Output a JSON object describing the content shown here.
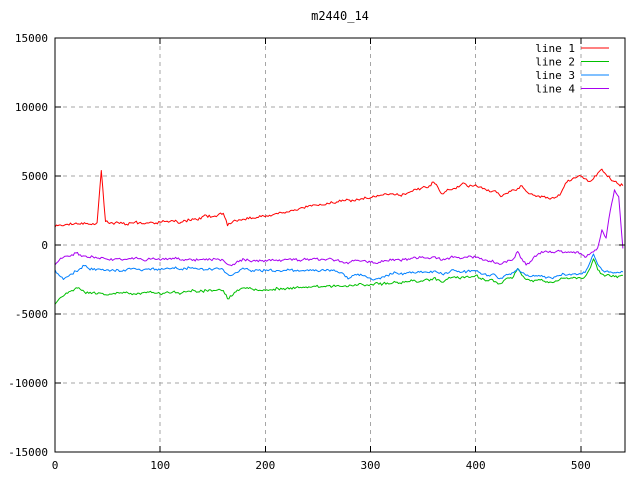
{
  "window": {
    "background": "#ffffff"
  },
  "chart_data": {
    "type": "line",
    "title": "m2440_14",
    "xlabel": "",
    "ylabel": "",
    "xlim": [
      0,
      542
    ],
    "ylim": [
      -15000,
      15000
    ],
    "xticks": [
      0,
      100,
      200,
      300,
      400,
      500
    ],
    "yticks": [
      -15000,
      -10000,
      -5000,
      0,
      5000,
      10000,
      15000
    ],
    "xtick_labels": [
      "0",
      "100",
      "200",
      "300",
      "400",
      "500"
    ],
    "ytick_labels": [
      "-15000",
      "-10000",
      "-5000",
      "0",
      "5000",
      "10000",
      "15000"
    ],
    "grid": "dashed",
    "legend_position": "top-right-inside",
    "colors": {
      "border": "#000000",
      "grid": "#a6a6a6",
      "text": "#000000",
      "background": "#ffffff"
    },
    "x_start": 0,
    "x_step": 4,
    "series": [
      {
        "name": "line 1",
        "color": "#ff0000",
        "noise": 110,
        "values": [
          1300,
          1450,
          1400,
          1500,
          1480,
          1600,
          1500,
          1620,
          1500,
          1560,
          1620,
          5400,
          1700,
          1560,
          1500,
          1620,
          1560,
          1500,
          1600,
          1660,
          1600,
          1550,
          1600,
          1650,
          1600,
          1660,
          1700,
          1650,
          1760,
          1700,
          1650,
          1760,
          1800,
          1860,
          1800,
          2050,
          2150,
          2000,
          2100,
          2250,
          2300,
          1400,
          1600,
          1760,
          1820,
          1860,
          1900,
          1960,
          2000,
          2060,
          2060,
          2160,
          2220,
          2260,
          2320,
          2400,
          2500,
          2560,
          2620,
          2700,
          2760,
          2820,
          2900,
          2960,
          2900,
          3000,
          3060,
          3120,
          3160,
          3220,
          3260,
          3200,
          3300,
          3360,
          3400,
          3420,
          3500,
          3560,
          3620,
          3660,
          3700,
          3640,
          3600,
          3700,
          3800,
          3900,
          4000,
          4100,
          4200,
          4300,
          4560,
          4200,
          3700,
          3900,
          4000,
          4100,
          4200,
          4500,
          4260,
          4300,
          4360,
          4200,
          4100,
          4000,
          3900,
          3800,
          3500,
          3700,
          3900,
          4000,
          4100,
          4300,
          3900,
          3700,
          3600,
          3560,
          3500,
          3460,
          3400,
          3460,
          3600,
          4200,
          4700,
          4800,
          4900,
          5000,
          4800,
          4600,
          4800,
          5200,
          5500,
          5100,
          4800,
          4600,
          4400,
          4300
        ]
      },
      {
        "name": "line 2",
        "color": "#00c000",
        "noise": 100,
        "values": [
          -4300,
          -3900,
          -3700,
          -3500,
          -3300,
          -3100,
          -3200,
          -3400,
          -3500,
          -3450,
          -3550,
          -3500,
          -3600,
          -3550,
          -3500,
          -3450,
          -3500,
          -3400,
          -3500,
          -3550,
          -3500,
          -3450,
          -3400,
          -3450,
          -3500,
          -3550,
          -3500,
          -3450,
          -3400,
          -3450,
          -3500,
          -3400,
          -3350,
          -3300,
          -3400,
          -3350,
          -3300,
          -3250,
          -3300,
          -3200,
          -3300,
          -3900,
          -3700,
          -3400,
          -3200,
          -3100,
          -3150,
          -3200,
          -3250,
          -3300,
          -3300,
          -3250,
          -3200,
          -3150,
          -3200,
          -3150,
          -3100,
          -3150,
          -3100,
          -3050,
          -3100,
          -3050,
          -3000,
          -3050,
          -3000,
          -2950,
          -3000,
          -2950,
          -3000,
          -2950,
          -2900,
          -2950,
          -2900,
          -2850,
          -2900,
          -2850,
          -2800,
          -2850,
          -2800,
          -2750,
          -2800,
          -2700,
          -2750,
          -2700,
          -2650,
          -2600,
          -2700,
          -2600,
          -2500,
          -2600,
          -2400,
          -2500,
          -2700,
          -2500,
          -2400,
          -2300,
          -2400,
          -2300,
          -2250,
          -2300,
          -2200,
          -2400,
          -2500,
          -2600,
          -2500,
          -2700,
          -2800,
          -2500,
          -2400,
          -2300,
          -1700,
          -2200,
          -2500,
          -2600,
          -2550,
          -2500,
          -2600,
          -2650,
          -2700,
          -2600,
          -2500,
          -2400,
          -2450,
          -2400,
          -2450,
          -2400,
          -2300,
          -1800,
          -1000,
          -1800,
          -2100,
          -2200,
          -2250,
          -2300,
          -2250,
          -2200
        ]
      },
      {
        "name": "line 3",
        "color": "#0080ff",
        "noise": 100,
        "values": [
          -1800,
          -2200,
          -2500,
          -2300,
          -2100,
          -1900,
          -1700,
          -1500,
          -1700,
          -1800,
          -1750,
          -1800,
          -1850,
          -1900,
          -1850,
          -1800,
          -1900,
          -1800,
          -1750,
          -1700,
          -1750,
          -1800,
          -1750,
          -1700,
          -1750,
          -1800,
          -1750,
          -1700,
          -1650,
          -1700,
          -1750,
          -1700,
          -1650,
          -1700,
          -1750,
          -1700,
          -1800,
          -1750,
          -1700,
          -1750,
          -1800,
          -2100,
          -2200,
          -2000,
          -1800,
          -1750,
          -1800,
          -1850,
          -1800,
          -1900,
          -1850,
          -1800,
          -1900,
          -1850,
          -1900,
          -1850,
          -1800,
          -1850,
          -1900,
          -1850,
          -1800,
          -1850,
          -1800,
          -1900,
          -1850,
          -1800,
          -1850,
          -1900,
          -2000,
          -2300,
          -2400,
          -2200,
          -2100,
          -2200,
          -2300,
          -2400,
          -2500,
          -2400,
          -2300,
          -2200,
          -2100,
          -2000,
          -2100,
          -2050,
          -2000,
          -1950,
          -2000,
          -1900,
          -1950,
          -2000,
          -1900,
          -2000,
          -2100,
          -2000,
          -1900,
          -1850,
          -1900,
          -1950,
          -1900,
          -1850,
          -1900,
          -2000,
          -2100,
          -2200,
          -2100,
          -2300,
          -2400,
          -2200,
          -2100,
          -2000,
          -1700,
          -2000,
          -2200,
          -2300,
          -2250,
          -2200,
          -2300,
          -2350,
          -2400,
          -2300,
          -2200,
          -2100,
          -2150,
          -2100,
          -2150,
          -2100,
          -2000,
          -1400,
          -650,
          -1400,
          -1800,
          -1900,
          -1950,
          -2000,
          -2000,
          -1950
        ]
      },
      {
        "name": "line 4",
        "color": "#a800f0",
        "noise": 100,
        "values": [
          -1450,
          -1100,
          -900,
          -800,
          -700,
          -580,
          -700,
          -800,
          -900,
          -850,
          -950,
          -900,
          -1000,
          -1100,
          -1050,
          -1000,
          -1100,
          -1050,
          -1000,
          -950,
          -1000,
          -1100,
          -1050,
          -1000,
          -1050,
          -1100,
          -1050,
          -1000,
          -950,
          -1000,
          -1100,
          -1050,
          -1000,
          -1050,
          -1100,
          -1050,
          -1000,
          -1050,
          -1000,
          -1050,
          -1100,
          -1400,
          -1500,
          -1300,
          -1100,
          -1050,
          -1100,
          -1150,
          -1100,
          -1150,
          -1100,
          -1050,
          -1100,
          -1150,
          -1100,
          -1050,
          -1000,
          -1050,
          -1100,
          -1050,
          -1000,
          -1050,
          -1000,
          -1100,
          -1050,
          -1000,
          -1050,
          -1100,
          -1200,
          -1300,
          -1250,
          -1150,
          -1100,
          -1150,
          -1200,
          -1250,
          -1300,
          -1250,
          -1200,
          -1150,
          -1100,
          -1050,
          -1100,
          -1050,
          -1000,
          -950,
          -1000,
          -900,
          -950,
          -1000,
          -850,
          -950,
          -1100,
          -1000,
          -900,
          -850,
          -900,
          -950,
          -900,
          -850,
          -900,
          -1000,
          -1100,
          -1200,
          -1100,
          -1300,
          -1400,
          -1200,
          -1100,
          -1000,
          -470,
          -1000,
          -1450,
          -1200,
          -800,
          -600,
          -550,
          -500,
          -550,
          -500,
          -450,
          -550,
          -500,
          -550,
          -500,
          -600,
          -900,
          -700,
          -500,
          -200,
          1100,
          500,
          2500,
          4000,
          3500,
          -250
        ]
      }
    ]
  }
}
